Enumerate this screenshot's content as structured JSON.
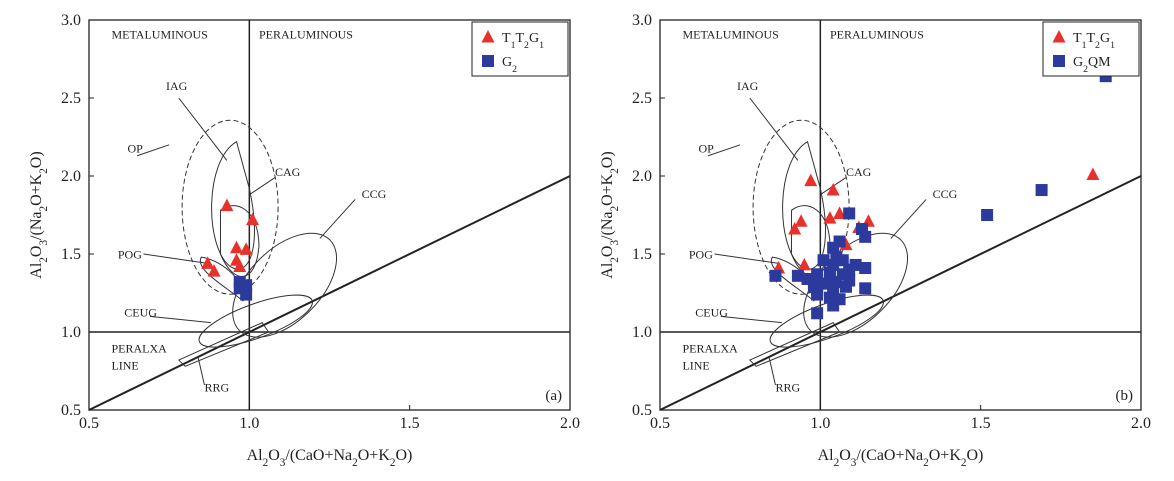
{
  "chart_data": [
    {
      "type": "scatter",
      "panel_label": "(a)",
      "xlim": [
        0.5,
        2.0
      ],
      "ylim": [
        0.5,
        3.0
      ],
      "xticks": [
        "0.5",
        "1.0",
        "1.5",
        "2.0"
      ],
      "yticks": [
        "0.5",
        "1.0",
        "1.5",
        "2.0",
        "2.5",
        "3.0"
      ],
      "xlabel": "Al2O3/(CaO+Na2O+K2O)",
      "ylabel": "Al2O3/(Na2O+K2O)",
      "grid": false,
      "legend_position": "top-right",
      "region_labels": [
        "METALUMINOUS",
        "PERALUMINOUS",
        "PERALXA",
        "LINE"
      ],
      "field_labels": [
        "IAG",
        "OP",
        "CAG",
        "CCG",
        "POG",
        "CEUG",
        "RRG"
      ],
      "series": [
        {
          "name": "T1T2G1",
          "marker": "triangle",
          "color": "#e8312a",
          "points": [
            [
              0.93,
              1.81
            ],
            [
              1.01,
              1.72
            ],
            [
              0.96,
              1.54
            ],
            [
              0.99,
              1.53
            ],
            [
              0.96,
              1.46
            ],
            [
              0.97,
              1.42
            ],
            [
              0.87,
              1.44
            ],
            [
              0.89,
              1.39
            ]
          ]
        },
        {
          "name": "G2",
          "marker": "square",
          "color": "#2c3a9e",
          "points": [
            [
              0.97,
              1.32
            ],
            [
              0.99,
              1.3
            ],
            [
              0.97,
              1.28
            ],
            [
              0.99,
              1.24
            ]
          ]
        }
      ]
    },
    {
      "type": "scatter",
      "panel_label": "(b)",
      "xlim": [
        0.5,
        2.0
      ],
      "ylim": [
        0.5,
        3.0
      ],
      "xticks": [
        "0.5",
        "1.0",
        "1.5",
        "2.0"
      ],
      "yticks": [
        "0.5",
        "1.0",
        "1.5",
        "2.0",
        "2.5",
        "3.0"
      ],
      "xlabel": "Al2O3/(CaO+Na2O+K2O)",
      "ylabel": "Al2O3/(Na2O+K2O)",
      "grid": false,
      "legend_position": "top-right",
      "region_labels": [
        "METALUMINOUS",
        "PERALUMINOUS",
        "PERALXA",
        "LINE"
      ],
      "field_labels": [
        "IAG",
        "OP",
        "CAG",
        "CCG",
        "POG",
        "CEUG",
        "RRG"
      ],
      "series": [
        {
          "name": "T1T2G1",
          "marker": "triangle",
          "color": "#e8312a",
          "points": [
            [
              0.97,
              1.97
            ],
            [
              1.04,
              1.91
            ],
            [
              0.92,
              1.66
            ],
            [
              0.94,
              1.71
            ],
            [
              1.03,
              1.73
            ],
            [
              1.06,
              1.76
            ],
            [
              1.08,
              1.56
            ],
            [
              1.12,
              1.67
            ],
            [
              1.15,
              1.71
            ],
            [
              0.95,
              1.43
            ],
            [
              0.87,
              1.41
            ],
            [
              1.85,
              2.01
            ]
          ]
        },
        {
          "name": "G2QM",
          "marker": "square",
          "color": "#2c3a9e",
          "points": [
            [
              1.89,
              2.64
            ],
            [
              1.69,
              1.91
            ],
            [
              1.52,
              1.75
            ],
            [
              1.09,
              1.76
            ],
            [
              1.13,
              1.66
            ],
            [
              1.14,
              1.61
            ],
            [
              1.06,
              1.58
            ],
            [
              1.04,
              1.54
            ],
            [
              1.05,
              1.48
            ],
            [
              1.01,
              1.46
            ],
            [
              1.04,
              1.43
            ],
            [
              1.07,
              1.46
            ],
            [
              1.11,
              1.43
            ],
            [
              1.14,
              1.41
            ],
            [
              1.03,
              1.38
            ],
            [
              1.07,
              1.37
            ],
            [
              1.09,
              1.4
            ],
            [
              0.99,
              1.37
            ],
            [
              0.93,
              1.36
            ],
            [
              0.96,
              1.34
            ],
            [
              0.86,
              1.36
            ],
            [
              0.99,
              1.33
            ],
            [
              1.02,
              1.31
            ],
            [
              1.05,
              1.32
            ],
            [
              1.09,
              1.33
            ],
            [
              0.98,
              1.29
            ],
            [
              0.99,
              1.27
            ],
            [
              1.04,
              1.26
            ],
            [
              1.08,
              1.29
            ],
            [
              1.14,
              1.28
            ],
            [
              0.99,
              1.24
            ],
            [
              1.03,
              1.22
            ],
            [
              1.06,
              1.21
            ],
            [
              1.04,
              1.17
            ],
            [
              0.99,
              1.12
            ]
          ]
        }
      ]
    }
  ]
}
